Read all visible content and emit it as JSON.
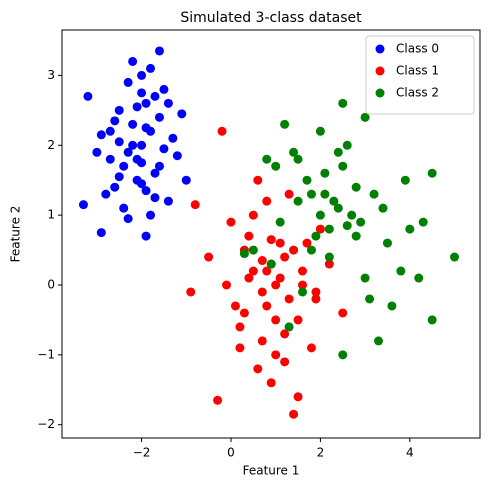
{
  "chart_data": {
    "type": "scatter",
    "title": "Simulated 3-class dataset",
    "x_label": "Feature 1",
    "y_label": "Feature 2",
    "xlim": [
      -3.78,
      5.57
    ],
    "ylim": [
      -2.19,
      3.65
    ],
    "xticks": [
      {
        "value": -2,
        "label": "−2"
      },
      0,
      2,
      4
    ],
    "yticks": [
      {
        "value": -2,
        "label": "−2"
      },
      {
        "value": -1,
        "label": "−1"
      },
      0,
      1,
      2,
      3
    ],
    "legend": "upper right",
    "series": [
      {
        "name": "Class 0",
        "color": "#0000ff",
        "x": [
          -3.3,
          -3.2,
          -2.9,
          -1.6,
          -1.9,
          -1.0,
          -2.0,
          -2.1,
          -1.8,
          -2.3,
          -2.5,
          -1.7,
          -2.2,
          -1.5,
          -2.6,
          -1.9,
          -2.4,
          -2.0,
          -1.3,
          -2.7,
          -2.8,
          -1.4,
          -2.1,
          -1.6,
          -2.3,
          -1.8,
          -2.0,
          -2.5,
          -1.2,
          -3.0,
          -2.2,
          -1.7,
          -1.9,
          -2.4,
          -2.6,
          -1.5,
          -2.1,
          -1.8,
          -2.9,
          -1.1,
          -2.0,
          -2.3,
          -1.6,
          -2.7,
          -1.4,
          -2.2,
          -1.9,
          -2.5,
          -1.7,
          -2.0
        ],
        "values": [
          1.15,
          2.7,
          0.75,
          3.35,
          0.7,
          1.5,
          2.0,
          1.8,
          2.2,
          1.9,
          2.5,
          1.6,
          2.3,
          2.8,
          1.4,
          2.6,
          1.7,
          3.0,
          2.1,
          2.2,
          1.3,
          1.2,
          1.5,
          2.4,
          2.9,
          1.0,
          1.75,
          2.05,
          1.85,
          1.9,
          3.2,
          2.7,
          1.35,
          1.1,
          2.35,
          1.95,
          2.55,
          3.1,
          2.15,
          2.45,
          1.45,
          0.95,
          1.7,
          1.8,
          2.6,
          2.0,
          2.25,
          1.55,
          1.25,
          2.75
        ]
      },
      {
        "name": "Class 1",
        "color": "#ff0000",
        "x": [
          -0.3,
          -0.2,
          1.4,
          -0.8,
          -0.9,
          2.5,
          0.5,
          1.0,
          0.8,
          1.2,
          0.3,
          1.5,
          0.7,
          0.9,
          1.1,
          0.2,
          1.7,
          0.6,
          1.3,
          0.0,
          1.9,
          0.4,
          1.0,
          0.8,
          -0.5,
          1.6,
          1.2,
          0.1,
          2.0,
          0.9,
          0.5,
          1.4,
          0.7,
          1.8,
          0.3,
          1.1,
          -0.1,
          1.5,
          0.6,
          1.3,
          0.8,
          2.2,
          0.2,
          1.0,
          1.6,
          0.4,
          1.9,
          0.7,
          1.2,
          0.9
        ],
        "values": [
          -1.65,
          2.2,
          -1.85,
          1.15,
          -0.1,
          -0.4,
          0.2,
          0.0,
          -0.3,
          0.4,
          0.5,
          -0.5,
          -0.8,
          0.3,
          0.1,
          -0.6,
          0.6,
          -1.2,
          -0.2,
          0.9,
          -0.1,
          0.7,
          -1.0,
          1.2,
          0.4,
          0.2,
          -0.7,
          -0.3,
          0.8,
          -1.4,
          1.0,
          0.5,
          -0.1,
          -0.9,
          -0.4,
          0.6,
          0.0,
          -1.6,
          1.5,
          1.3,
          0.2,
          0.3,
          -0.9,
          -0.5,
          0.0,
          0.1,
          -0.2,
          0.35,
          -1.1,
          0.65
        ]
      },
      {
        "name": "Class 2",
        "color": "#008000",
        "x": [
          5.0,
          4.5,
          2.5,
          3.3,
          2.5,
          4.5,
          3.0,
          2.0,
          1.5,
          2.2,
          2.8,
          1.2,
          3.5,
          1.8,
          2.4,
          0.8,
          3.8,
          2.1,
          1.6,
          2.9,
          0.5,
          3.2,
          2.6,
          1.9,
          4.0,
          1.4,
          2.3,
          3.6,
          0.9,
          2.7,
          1.7,
          3.0,
          2.0,
          4.2,
          1.1,
          2.5,
          3.4,
          1.3,
          2.2,
          0.3,
          3.9,
          2.8,
          1.8,
          2.4,
          3.1,
          1.0,
          2.6,
          4.3,
          2.1,
          1.5
        ],
        "values": [
          0.4,
          -0.5,
          2.6,
          -0.8,
          -1.0,
          1.6,
          2.4,
          1.0,
          1.2,
          0.8,
          1.4,
          2.3,
          0.6,
          0.5,
          1.1,
          1.8,
          0.2,
          1.6,
          -0.1,
          0.9,
          0.5,
          1.3,
          2.0,
          0.7,
          0.8,
          1.9,
          1.2,
          -0.3,
          0.3,
          1.0,
          1.5,
          0.1,
          2.2,
          0.1,
          0.9,
          1.7,
          1.1,
          -0.6,
          0.4,
          0.45,
          1.5,
          0.7,
          1.3,
          1.9,
          -0.2,
          1.7,
          0.85,
          0.9,
          1.3,
          1.8
        ]
      }
    ]
  }
}
